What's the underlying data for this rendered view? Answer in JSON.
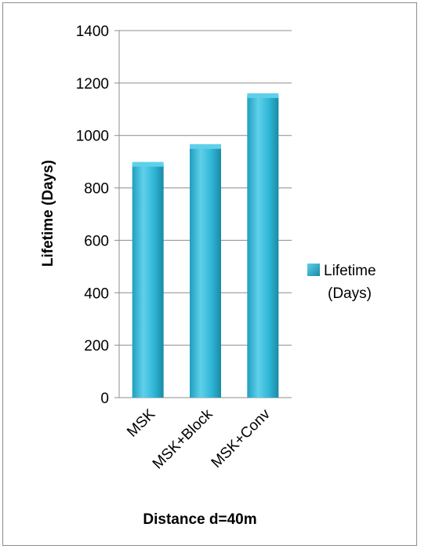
{
  "chart_data": {
    "type": "bar",
    "categories": [
      "MSK",
      "MSK+Block",
      "MSK+Conv"
    ],
    "series": [
      {
        "name": "Lifetime (Days)",
        "values": [
          890,
          958,
          1152
        ]
      }
    ],
    "xlabel": "Distance d=40m",
    "ylabel": "Lifetime (Days)",
    "ylim": [
      0,
      1400
    ],
    "yticks": [
      0,
      200,
      400,
      600,
      800,
      1000,
      1200,
      1400
    ],
    "grid": true,
    "legend": {
      "position": "right",
      "lines": [
        "Lifetime",
        "(Days)"
      ]
    },
    "colors": {
      "bar_light": "#5fd0ea",
      "bar_main": "#2fb6d6",
      "bar_dark": "#1a8aa6",
      "grid": "#8c8c8c"
    }
  }
}
